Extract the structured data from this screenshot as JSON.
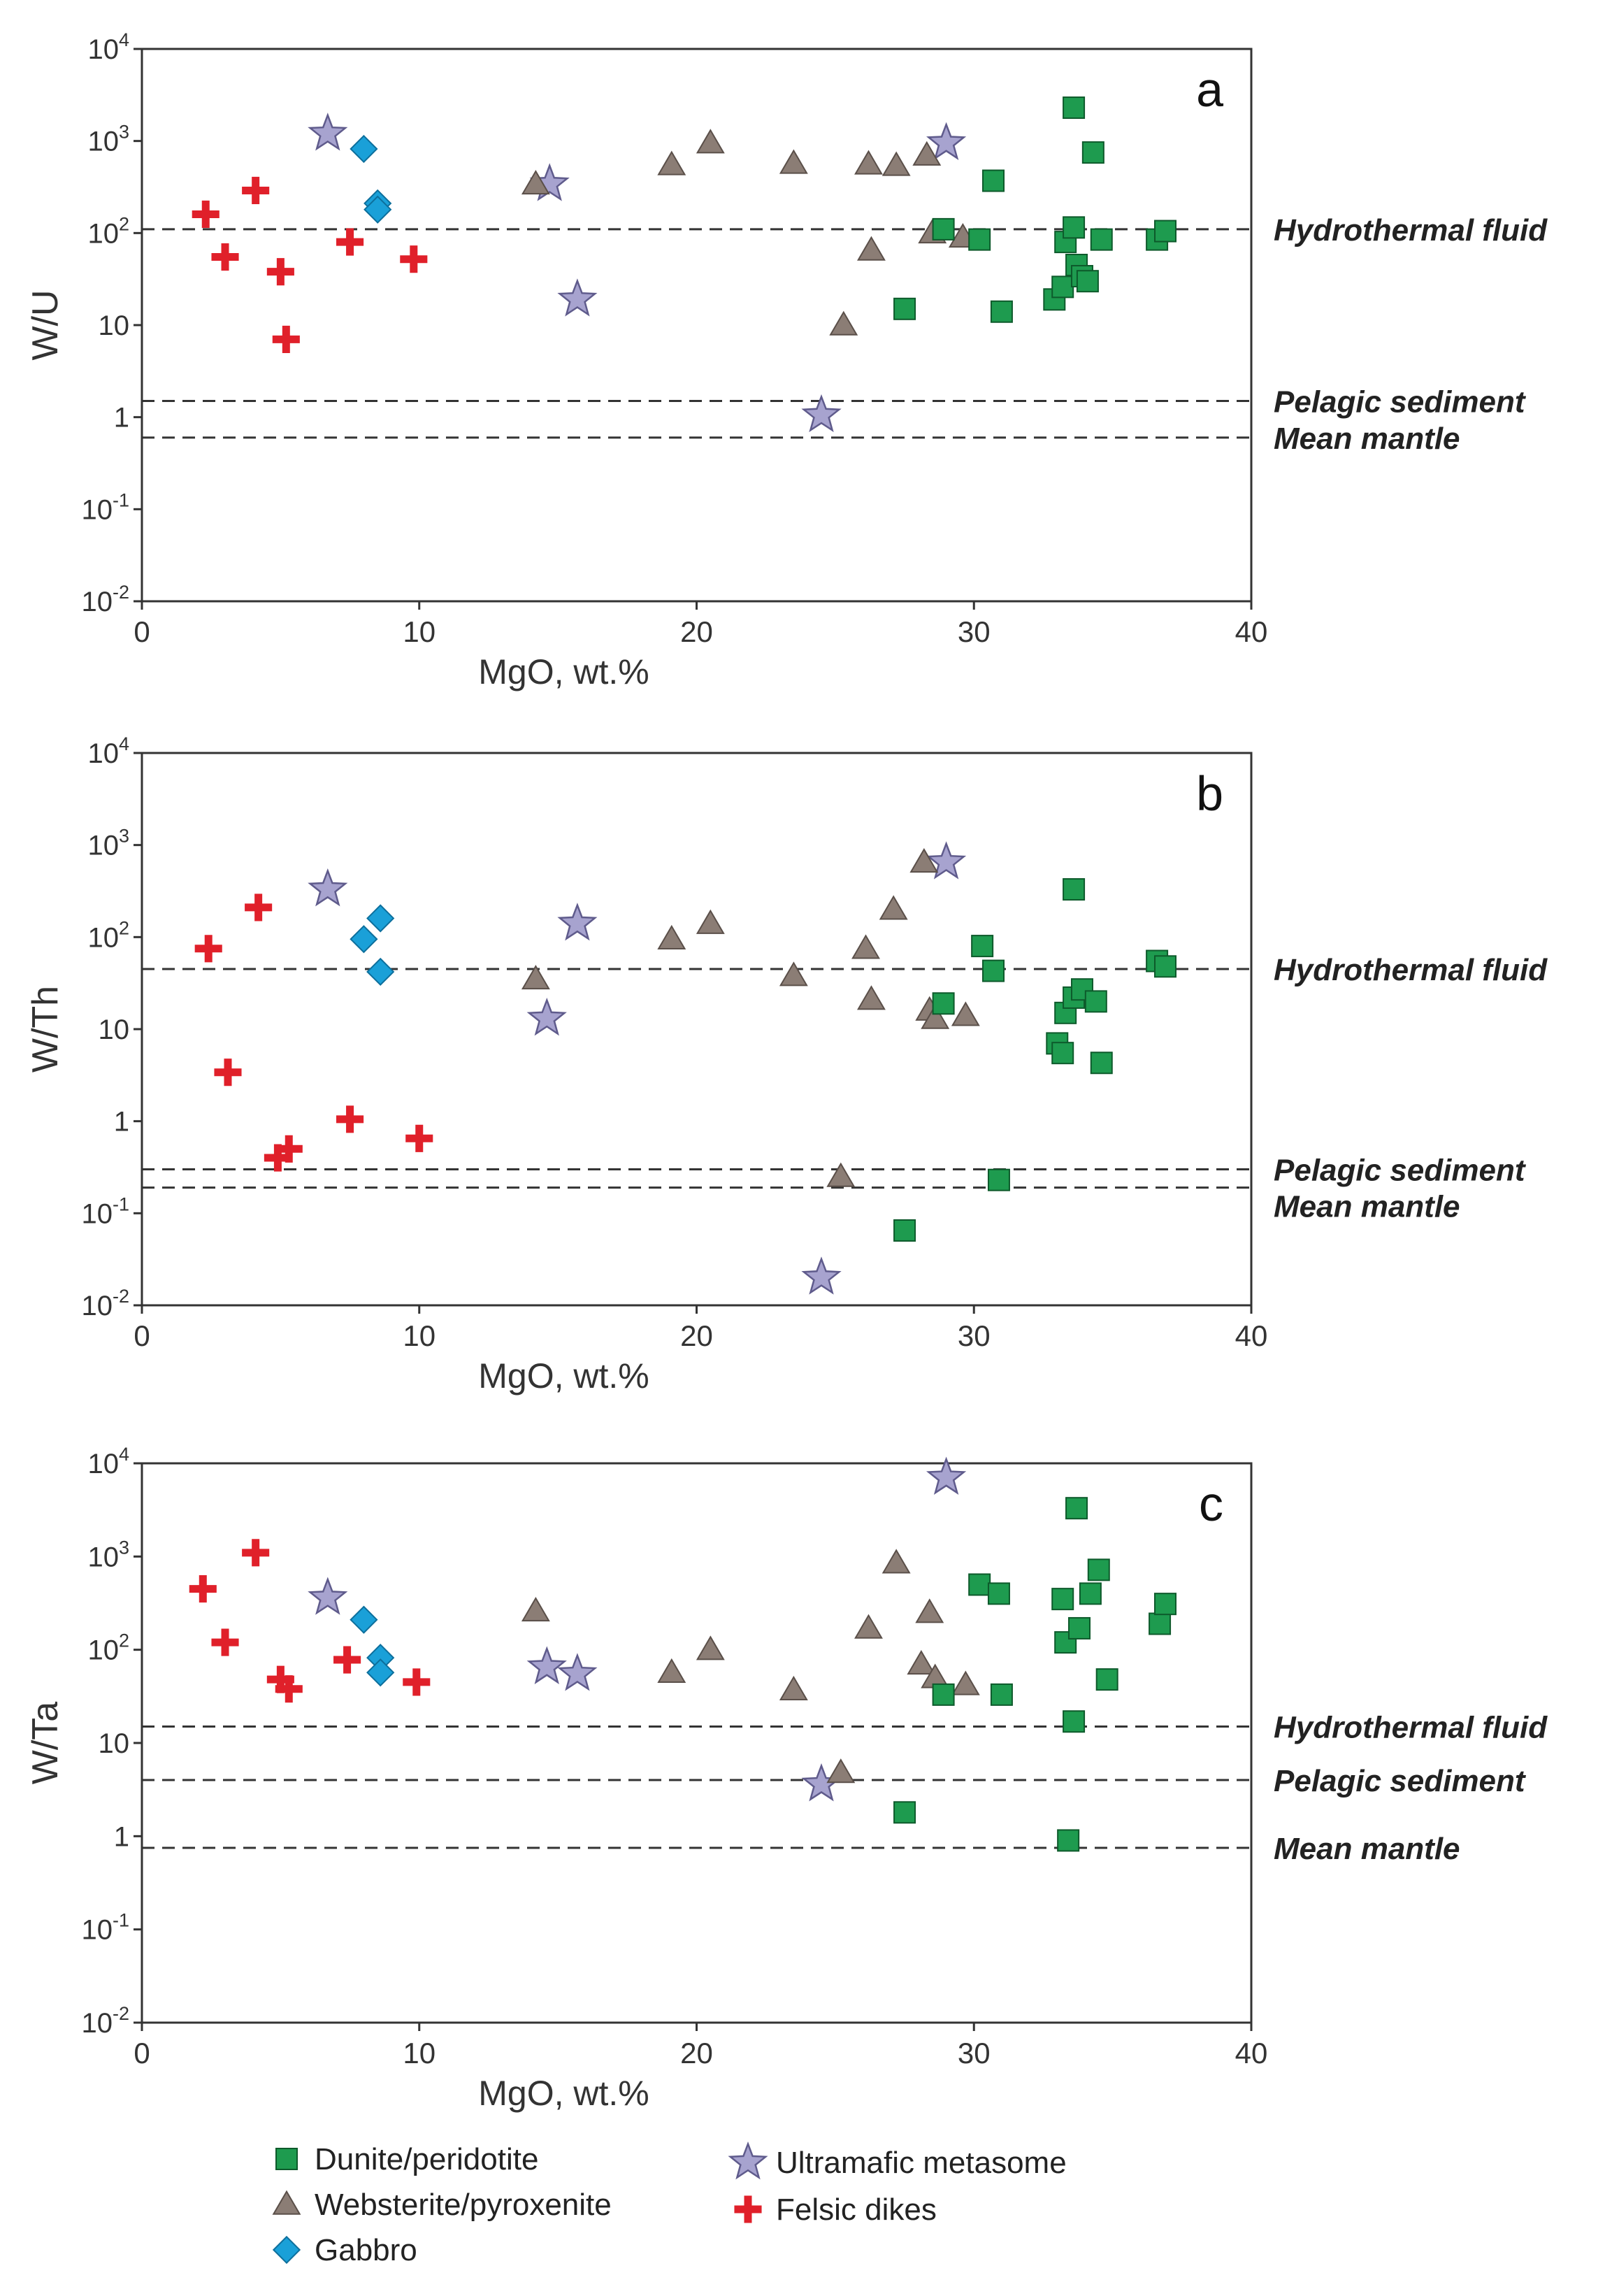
{
  "colors": {
    "dunite": "#1e9b4f",
    "websterite": "#8b7d75",
    "gabbro": "#1aa0d8",
    "metasome": "#a7a3cf",
    "felsic": "#e0202a",
    "axis": "#333333"
  },
  "legend": [
    {
      "key": "dunite",
      "label": "Dunite/peridotite",
      "marker": "square"
    },
    {
      "key": "websterite",
      "label": "Websterite/pyroxenite",
      "marker": "triangle"
    },
    {
      "key": "gabbro",
      "label": "Gabbro",
      "marker": "diamond"
    },
    {
      "key": "metasome",
      "label": "Ultramafic metasome",
      "marker": "star"
    },
    {
      "key": "felsic",
      "label": "Felsic dikes",
      "marker": "cross"
    }
  ],
  "chart_data": [
    {
      "type": "scatter",
      "panel_label": "a",
      "xlabel": "MgO, wt.%",
      "ylabel": "W/U",
      "xlim": [
        0,
        40
      ],
      "ylim_log10": [
        -2,
        4
      ],
      "x_ticks": [
        "0",
        "10",
        "20",
        "30",
        "40"
      ],
      "reference_lines": [
        {
          "label": "Hydrothermal fluid",
          "value": 110
        },
        {
          "label": "Pelagic sediment",
          "value": 1.5
        },
        {
          "label": "Mean mantle",
          "value": 0.6
        }
      ],
      "series": [
        {
          "key": "felsic",
          "points": [
            [
              2.3,
              160
            ],
            [
              3.0,
              55
            ],
            [
              4.1,
              290
            ],
            [
              5.0,
              38
            ],
            [
              5.2,
              7
            ],
            [
              7.5,
              80
            ],
            [
              9.8,
              52
            ]
          ]
        },
        {
          "key": "gabbro",
          "points": [
            [
              8.0,
              820
            ],
            [
              8.5,
              210
            ],
            [
              8.5,
              180
            ]
          ]
        },
        {
          "key": "metasome",
          "points": [
            [
              6.7,
              1200
            ],
            [
              14.7,
              340
            ],
            [
              15.7,
              19
            ],
            [
              24.5,
              1.05
            ],
            [
              29.0,
              950
            ]
          ]
        },
        {
          "key": "websterite",
          "points": [
            [
              14.2,
              340
            ],
            [
              19.1,
              550
            ],
            [
              20.5,
              950
            ],
            [
              23.5,
              570
            ],
            [
              25.3,
              10
            ],
            [
              26.2,
              560
            ],
            [
              26.3,
              65
            ],
            [
              27.2,
              540
            ],
            [
              28.3,
              700
            ],
            [
              28.5,
              100
            ],
            [
              29.6,
              90
            ]
          ]
        },
        {
          "key": "dunite",
          "points": [
            [
              27.5,
              15
            ],
            [
              28.9,
              110
            ],
            [
              30.2,
              85
            ],
            [
              30.7,
              370
            ],
            [
              31.0,
              14
            ],
            [
              32.9,
              19
            ],
            [
              33.2,
              26
            ],
            [
              33.3,
              80
            ],
            [
              33.6,
              115
            ],
            [
              33.6,
              2300
            ],
            [
              33.7,
              45
            ],
            [
              33.9,
              34
            ],
            [
              34.1,
              30
            ],
            [
              34.3,
              750
            ],
            [
              34.6,
              85
            ],
            [
              36.6,
              85
            ],
            [
              36.9,
              105
            ]
          ]
        }
      ]
    },
    {
      "type": "scatter",
      "panel_label": "b",
      "xlabel": "MgO, wt.%",
      "ylabel": "W/Th",
      "xlim": [
        0,
        40
      ],
      "ylim_log10": [
        -2,
        4
      ],
      "x_ticks": [
        "0",
        "10",
        "20",
        "30",
        "40"
      ],
      "reference_lines": [
        {
          "label": "Hydrothermal fluid",
          "value": 45
        },
        {
          "label": "Pelagic sediment",
          "value": 0.3
        },
        {
          "label": "Mean mantle",
          "value": 0.19
        }
      ],
      "series": [
        {
          "key": "felsic",
          "points": [
            [
              2.4,
              75
            ],
            [
              3.1,
              3.4
            ],
            [
              4.2,
              210
            ],
            [
              4.9,
              0.4
            ],
            [
              5.3,
              0.5
            ],
            [
              7.5,
              1.05
            ],
            [
              10.0,
              0.65
            ]
          ]
        },
        {
          "key": "gabbro",
          "points": [
            [
              8.0,
              95
            ],
            [
              8.6,
              160
            ],
            [
              8.6,
              42
            ]
          ]
        },
        {
          "key": "metasome",
          "points": [
            [
              6.7,
              330
            ],
            [
              14.6,
              13
            ],
            [
              15.7,
              140
            ],
            [
              24.5,
              0.02
            ],
            [
              29.0,
              650
            ]
          ]
        },
        {
          "key": "websterite",
          "points": [
            [
              14.2,
              35
            ],
            [
              19.1,
              95
            ],
            [
              20.5,
              140
            ],
            [
              23.5,
              38
            ],
            [
              25.2,
              0.25
            ],
            [
              26.1,
              75
            ],
            [
              26.3,
              21
            ],
            [
              27.1,
              200
            ],
            [
              28.2,
              650
            ],
            [
              28.4,
              16
            ],
            [
              28.6,
              13
            ],
            [
              29.7,
              14
            ]
          ]
        },
        {
          "key": "dunite",
          "points": [
            [
              27.5,
              0.065
            ],
            [
              28.9,
              19
            ],
            [
              30.3,
              80
            ],
            [
              30.7,
              43
            ],
            [
              30.9,
              0.23
            ],
            [
              33.0,
              7
            ],
            [
              33.2,
              5.5
            ],
            [
              33.3,
              15
            ],
            [
              33.6,
              330
            ],
            [
              33.6,
              22
            ],
            [
              33.9,
              27
            ],
            [
              34.4,
              20
            ],
            [
              34.6,
              4.3
            ],
            [
              36.6,
              55
            ],
            [
              36.9,
              48
            ]
          ]
        }
      ]
    },
    {
      "type": "scatter",
      "panel_label": "c",
      "xlabel": "MgO, wt.%",
      "ylabel": "W/Ta",
      "xlim": [
        0,
        40
      ],
      "ylim_log10": [
        -2,
        4
      ],
      "x_ticks": [
        "0",
        "10",
        "20",
        "30",
        "40"
      ],
      "reference_lines": [
        {
          "label": "Hydrothermal fluid",
          "value": 15
        },
        {
          "label": "Pelagic sediment",
          "value": 4
        },
        {
          "label": "Mean mantle",
          "value": 0.75
        }
      ],
      "series": [
        {
          "key": "felsic",
          "points": [
            [
              2.2,
              450
            ],
            [
              3.0,
              120
            ],
            [
              4.1,
              1100
            ],
            [
              5.0,
              48
            ],
            [
              5.3,
              38
            ],
            [
              7.4,
              78
            ],
            [
              9.9,
              45
            ]
          ]
        },
        {
          "key": "gabbro",
          "points": [
            [
              8.0,
              210
            ],
            [
              8.6,
              82
            ],
            [
              8.6,
              57
            ]
          ]
        },
        {
          "key": "metasome",
          "points": [
            [
              6.7,
              360
            ],
            [
              14.6,
              65
            ],
            [
              15.7,
              55
            ],
            [
              24.5,
              3.6
            ],
            [
              29.0,
              7000
            ]
          ]
        },
        {
          "key": "websterite",
          "points": [
            [
              14.2,
              260
            ],
            [
              19.1,
              57
            ],
            [
              20.5,
              100
            ],
            [
              23.5,
              37
            ],
            [
              25.2,
              4.8
            ],
            [
              26.2,
              170
            ],
            [
              27.2,
              850
            ],
            [
              28.1,
              70
            ],
            [
              28.4,
              250
            ],
            [
              28.6,
              50
            ],
            [
              29.7,
              42
            ]
          ]
        },
        {
          "key": "dunite",
          "points": [
            [
              27.5,
              1.8
            ],
            [
              28.9,
              33
            ],
            [
              30.2,
              500
            ],
            [
              30.9,
              400
            ],
            [
              31.0,
              33
            ],
            [
              33.2,
              350
            ],
            [
              33.3,
              120
            ],
            [
              33.4,
              0.9
            ],
            [
              33.6,
              17
            ],
            [
              33.7,
              3300
            ],
            [
              33.8,
              170
            ],
            [
              34.2,
              400
            ],
            [
              34.5,
              720
            ],
            [
              34.8,
              48
            ],
            [
              36.7,
              190
            ],
            [
              36.9,
              310
            ]
          ]
        }
      ]
    }
  ]
}
